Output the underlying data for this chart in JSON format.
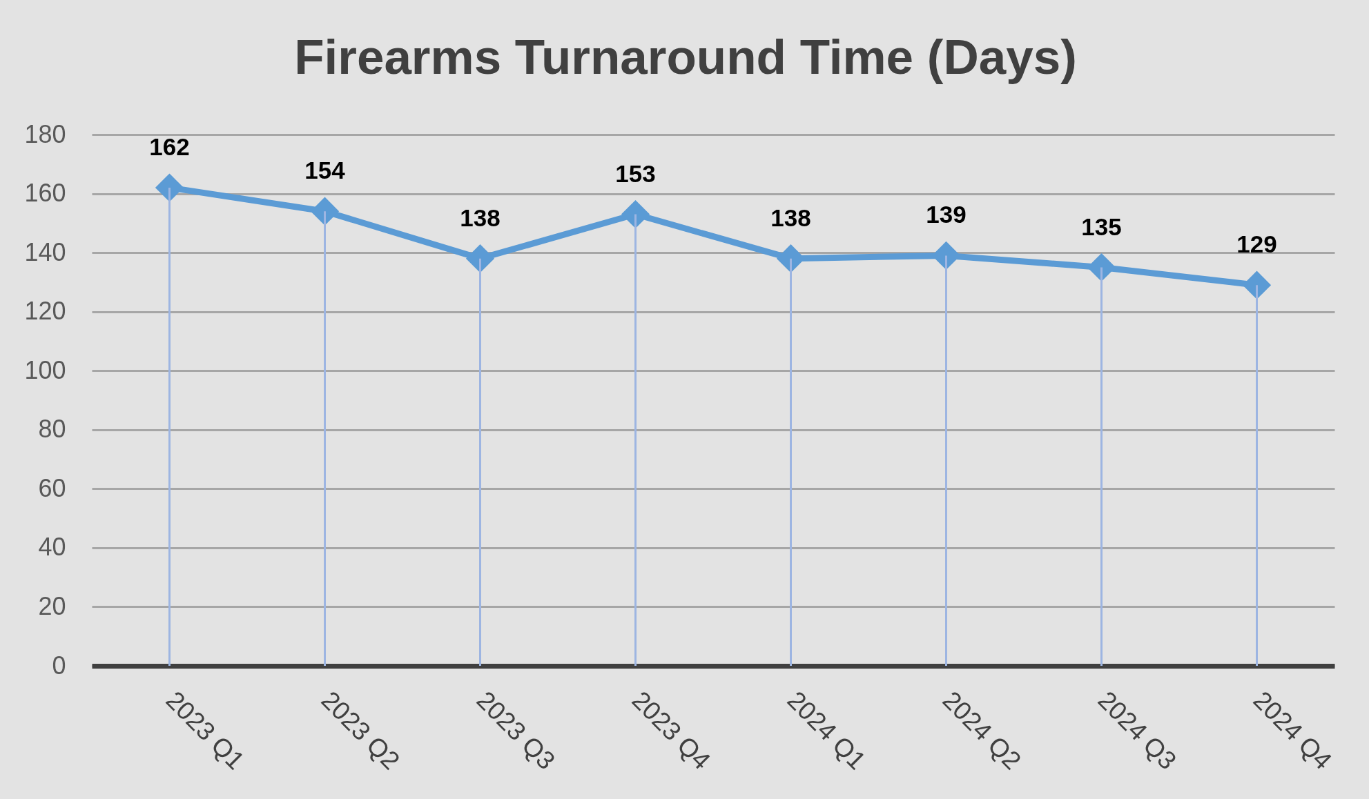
{
  "chart_data": {
    "type": "line",
    "title": "Firearms Turnaround Time (Days)",
    "categories": [
      "2023 Q1",
      "2023 Q2",
      "2023 Q3",
      "2023 Q4",
      "2024 Q1",
      "2024 Q2",
      "2024 Q3",
      "2024 Q4"
    ],
    "series": [
      {
        "color": "#5b9bd5",
        "values": [
          162,
          154,
          138,
          153,
          138,
          139,
          135,
          129
        ],
        "value_labels": [
          "162",
          "154",
          "138",
          "153",
          "138",
          "139",
          "135",
          "129"
        ]
      },
      {
        "type": "bar",
        "color": "#9db5e2",
        "values": [
          162,
          154,
          138,
          153,
          138,
          139,
          135,
          129
        ]
      }
    ],
    "ylim": [
      0,
      180
    ],
    "yticks": [
      0,
      20,
      40,
      60,
      80,
      100,
      120,
      140,
      160,
      180
    ],
    "grid": "y",
    "marker": "diamond",
    "line_style": "solid"
  }
}
